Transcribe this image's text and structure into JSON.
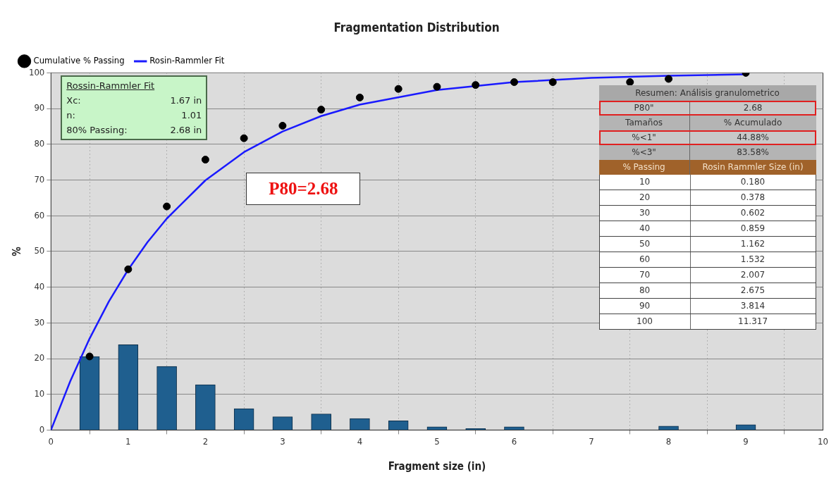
{
  "chart_data": {
    "type": "line",
    "title": "Fragmentation Distribution",
    "xlabel": "Fragment size (in)",
    "ylabel": "%",
    "xlim": [
      0,
      10
    ],
    "xticks": [
      0,
      1,
      2,
      3,
      4,
      5,
      6,
      7,
      8,
      9,
      10
    ],
    "ylim": [
      0,
      100
    ],
    "yticks": [
      0,
      10,
      20,
      30,
      40,
      50,
      60,
      70,
      80,
      90,
      100
    ],
    "grid": true,
    "legend": "top left",
    "line_style": "solid",
    "series": [
      {
        "type": "bar",
        "color": "#1f5f8f",
        "x": [
          0.5,
          1,
          1.5,
          2,
          2.5,
          3,
          3.5,
          4,
          4.5,
          5,
          5.5,
          6,
          8,
          9
        ],
        "values": [
          20.6,
          23.9,
          17.8,
          12.7,
          6,
          3.7,
          4.5,
          3.2,
          2.6,
          0.9,
          0.4,
          0.9,
          1.1,
          1.5
        ]
      },
      {
        "type": "scatter",
        "name": "Cumulative % Passing",
        "color": "#000000",
        "marker": "circle",
        "x": [
          0.5,
          1,
          1.5,
          2,
          2.5,
          3,
          3.5,
          4,
          4.5,
          5,
          5.5,
          6,
          6.5,
          7.5,
          8,
          9
        ],
        "values": [
          20.6,
          45,
          62.6,
          75.7,
          81.7,
          85.2,
          89.7,
          93.1,
          95.5,
          96.1,
          96.6,
          97.4,
          97.4,
          97.4,
          98.3,
          100
        ]
      },
      {
        "name": "Rosin-Rammler Fit",
        "color": "#1a1aff",
        "x": [
          0,
          0.25,
          0.5,
          0.75,
          1,
          1.25,
          1.5,
          2,
          2.5,
          3,
          3.5,
          4,
          5,
          6,
          7,
          8,
          9
        ],
        "values": [
          0,
          13.7,
          25.6,
          36,
          44.9,
          52.6,
          59.2,
          69.9,
          77.8,
          83.6,
          87.9,
          91.1,
          95.2,
          97.4,
          98.6,
          99.2,
          99.6
        ]
      }
    ],
    "annotations": [
      "Rossin-Rammler Fit",
      "Xc:",
      "1.67 in",
      "n:",
      "1.01",
      "80% Passing:",
      "2.68 in",
      "P80=2.68",
      "Resumen: Análisis granulometrico",
      "P80\"",
      "2.68",
      "Tamaños",
      "% Acumulado",
      "%<1\"",
      "44.88%",
      "%<3\"",
      "83.58%",
      "% Passing",
      "Rosin Rammler Size (in)",
      "10",
      "0.180",
      "20",
      "0.378",
      "30",
      "0.602",
      "40",
      "0.859",
      "50",
      "1.162",
      "60",
      "1.532",
      "70",
      "2.007",
      "80",
      "2.675",
      "90",
      "3.814",
      "100",
      "11.317"
    ]
  }
}
